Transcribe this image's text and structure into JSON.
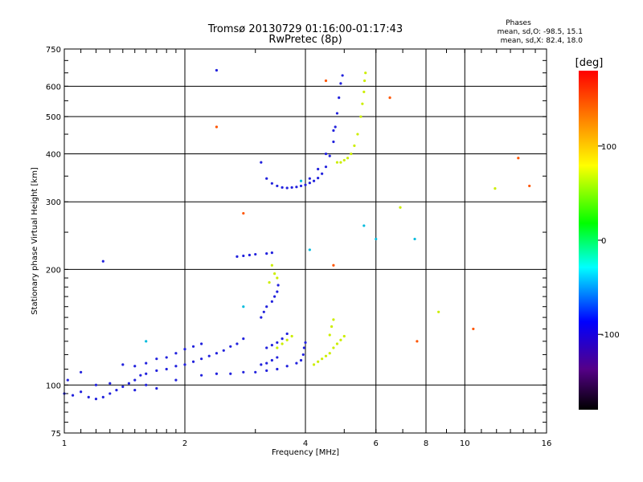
{
  "chart_data": {
    "type": "scatter",
    "title": "Tromsø 20130729 01:16:00-01:17:43",
    "subtitle": "RwPretec (8p)",
    "xlabel": "Frequency [MHz]",
    "ylabel": "Stationary phase Virtual Height [km]",
    "x_scale": "log",
    "y_scale": "log",
    "xlim": [
      1,
      16
    ],
    "ylim": [
      75,
      750
    ],
    "x_ticks": [
      1,
      2,
      4,
      6,
      8,
      10,
      16
    ],
    "y_ticks": [
      75,
      100,
      200,
      300,
      400,
      500,
      600,
      750
    ],
    "grid": true,
    "phase_stats": {
      "heading": "Phases",
      "line_o": "mean, sd,O: -98.5, 15.1",
      "line_x": "mean, sd,X:  82.4, 18.0"
    },
    "colorbar": {
      "label": "[deg]",
      "range": [
        -180,
        180
      ],
      "ticks": [
        100,
        0,
        -100
      ]
    },
    "series": [
      {
        "points": [
          [
            1.0,
            95
          ],
          [
            1.05,
            94
          ],
          [
            1.1,
            96
          ],
          [
            1.15,
            93
          ],
          [
            1.2,
            92
          ],
          [
            1.25,
            93
          ],
          [
            1.3,
            95
          ],
          [
            1.35,
            97
          ],
          [
            1.4,
            99
          ],
          [
            1.45,
            101
          ],
          [
            1.5,
            103
          ],
          [
            1.55,
            106
          ],
          [
            1.6,
            107
          ],
          [
            1.7,
            109
          ],
          [
            1.8,
            110
          ],
          [
            1.9,
            112
          ],
          [
            2.0,
            113
          ],
          [
            2.1,
            115
          ],
          [
            2.2,
            117
          ],
          [
            2.3,
            119
          ],
          [
            2.4,
            121
          ],
          [
            2.5,
            123
          ],
          [
            2.6,
            126
          ],
          [
            2.7,
            128
          ],
          [
            2.8,
            132
          ],
          [
            1.02,
            103
          ],
          [
            1.1,
            108
          ],
          [
            1.3,
            101
          ],
          [
            1.4,
            113
          ],
          [
            1.5,
            112
          ],
          [
            1.6,
            114
          ],
          [
            1.7,
            117
          ],
          [
            1.8,
            118
          ],
          [
            1.9,
            121
          ],
          [
            2.0,
            124
          ],
          [
            2.1,
            126
          ],
          [
            2.2,
            128
          ],
          [
            1.2,
            100
          ],
          [
            1.5,
            97
          ],
          [
            1.6,
            100
          ],
          [
            1.7,
            98
          ],
          [
            1.9,
            103
          ],
          [
            2.2,
            106
          ],
          [
            2.4,
            107
          ],
          [
            2.6,
            107
          ],
          [
            2.8,
            108
          ],
          [
            3.0,
            108
          ],
          [
            3.2,
            109
          ],
          [
            3.4,
            110
          ],
          [
            3.6,
            112
          ],
          [
            3.8,
            114
          ],
          [
            3.9,
            116
          ],
          [
            3.95,
            120
          ],
          [
            3.97,
            125
          ],
          [
            4.0,
            129
          ],
          [
            3.1,
            113
          ],
          [
            3.2,
            114
          ],
          [
            3.3,
            116
          ],
          [
            3.4,
            118
          ],
          [
            3.2,
            125
          ],
          [
            3.3,
            127
          ],
          [
            3.4,
            129
          ],
          [
            3.5,
            132
          ],
          [
            3.6,
            136
          ],
          [
            3.1,
            150
          ],
          [
            3.15,
            155
          ],
          [
            3.2,
            160
          ],
          [
            3.3,
            165
          ],
          [
            3.35,
            170
          ],
          [
            3.4,
            175
          ],
          [
            3.42,
            182
          ],
          [
            3.3,
            221
          ],
          [
            3.2,
            220
          ],
          [
            3.0,
            219
          ],
          [
            2.9,
            218
          ],
          [
            2.8,
            217
          ],
          [
            2.7,
            216
          ],
          [
            3.1,
            380
          ],
          [
            3.2,
            345
          ],
          [
            3.3,
            335
          ],
          [
            3.4,
            330
          ],
          [
            3.5,
            327
          ],
          [
            3.6,
            326
          ],
          [
            3.7,
            327
          ],
          [
            3.8,
            328
          ],
          [
            3.9,
            330
          ],
          [
            4.0,
            332
          ],
          [
            4.1,
            336
          ],
          [
            4.2,
            340
          ],
          [
            4.3,
            346
          ],
          [
            4.4,
            355
          ],
          [
            4.5,
            370
          ],
          [
            4.6,
            395
          ],
          [
            4.7,
            430
          ],
          [
            4.75,
            470
          ],
          [
            4.8,
            510
          ],
          [
            4.85,
            560
          ],
          [
            4.9,
            610
          ],
          [
            4.95,
            640
          ],
          [
            4.1,
            345
          ],
          [
            4.3,
            365
          ],
          [
            4.5,
            400
          ],
          [
            4.7,
            460
          ],
          [
            1.25,
            210
          ],
          [
            2.4,
            660
          ]
        ]
      },
      {
        "points": [
          [
            3.3,
            205
          ],
          [
            3.35,
            195
          ],
          [
            3.4,
            190
          ],
          [
            3.25,
            185
          ],
          [
            3.4,
            125
          ],
          [
            3.5,
            128
          ],
          [
            3.6,
            131
          ],
          [
            3.7,
            134
          ],
          [
            4.2,
            113
          ],
          [
            4.3,
            115
          ],
          [
            4.4,
            117
          ],
          [
            4.5,
            119
          ],
          [
            4.6,
            121
          ],
          [
            4.7,
            125
          ],
          [
            4.8,
            128
          ],
          [
            4.9,
            131
          ],
          [
            5.0,
            134
          ],
          [
            4.6,
            135
          ],
          [
            4.65,
            142
          ],
          [
            4.7,
            148
          ],
          [
            4.8,
            380
          ],
          [
            4.9,
            380
          ],
          [
            5.0,
            385
          ],
          [
            5.1,
            390
          ],
          [
            5.2,
            400
          ],
          [
            5.3,
            420
          ],
          [
            5.4,
            450
          ],
          [
            5.5,
            500
          ],
          [
            5.55,
            540
          ],
          [
            5.6,
            580
          ],
          [
            5.62,
            620
          ],
          [
            5.65,
            650
          ],
          [
            6.9,
            290
          ],
          [
            8.6,
            155
          ],
          [
            11.9,
            325
          ]
        ]
      },
      {
        "points": [
          [
            2.4,
            470
          ],
          [
            4.5,
            620
          ],
          [
            2.8,
            280
          ],
          [
            4.7,
            205
          ],
          [
            10.5,
            140
          ],
          [
            13.6,
            390
          ],
          [
            14.5,
            330
          ],
          [
            6.5,
            560
          ],
          [
            7.6,
            130
          ]
        ]
      },
      {
        "points": [
          [
            4.1,
            225
          ],
          [
            3.9,
            340
          ],
          [
            2.8,
            160
          ],
          [
            5.6,
            260
          ],
          [
            7.5,
            240
          ],
          [
            6.0,
            240
          ],
          [
            1.6,
            130
          ]
        ]
      }
    ]
  }
}
